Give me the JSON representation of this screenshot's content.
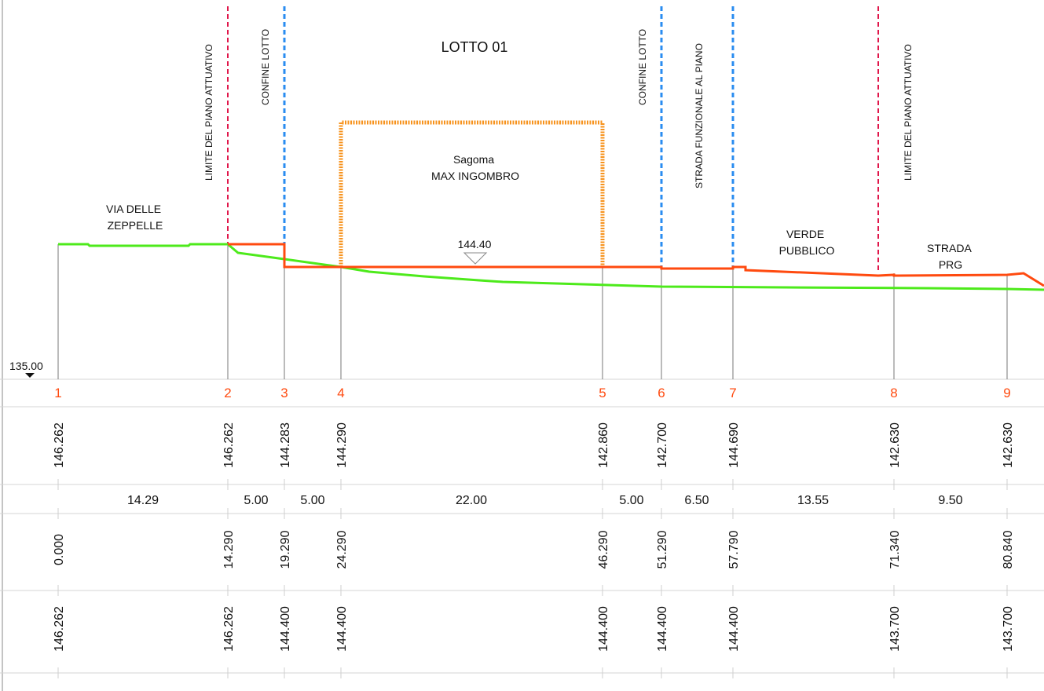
{
  "title": "LOTTO 01",
  "labels": {
    "via_delle_zeppelle": [
      "VIA DELLE",
      "ZEPPELLE"
    ],
    "sagoma": [
      "Sagoma",
      "MAX INGOMBRO"
    ],
    "verde_pubblico": [
      "VERDE",
      "PUBBLICO"
    ],
    "strada_prg": [
      "STRADA",
      "PRG"
    ],
    "limite_piano_left": "LIMITE DEL PIANO ATTUATIVO",
    "confine_lotto_left": "CONFINE LOTTO",
    "confine_lotto_right": "CONFINE LOTTO",
    "strada_funzionale": "STRADA FUNZIONALE AL PIANO",
    "limite_piano_right": "LIMITE DEL PIANO ATTUATIVO"
  },
  "reference_level": "135.00",
  "project_level_mark": "144.40",
  "points": [
    "1",
    "2",
    "3",
    "4",
    "5",
    "6",
    "7",
    "8",
    "9"
  ],
  "existing_levels": [
    "146.262",
    "146.262",
    "144.283",
    "144.290",
    "142.860",
    "142.700",
    "144.690",
    "142.630",
    "142.630"
  ],
  "partial_distances": [
    "14.29",
    "5.00",
    "5.00",
    "22.00",
    "5.00",
    "6.50",
    "13.55",
    "9.50"
  ],
  "progressive_distances": [
    "0.000",
    "14.290",
    "19.290",
    "24.290",
    "46.290",
    "51.290",
    "57.790",
    "71.340",
    "80.840"
  ],
  "project_levels": [
    "146.262",
    "146.262",
    "144.400",
    "144.400",
    "144.400",
    "144.400",
    "144.400",
    "143.700",
    "143.700"
  ],
  "colors": {
    "terrain": "#4dea1b",
    "project": "#ff4a0f",
    "limit_line": "#e0164a",
    "lot_line": "#2a8cf0",
    "sagoma": "#f7931e",
    "point_numbers": "#ff4a0f"
  }
}
